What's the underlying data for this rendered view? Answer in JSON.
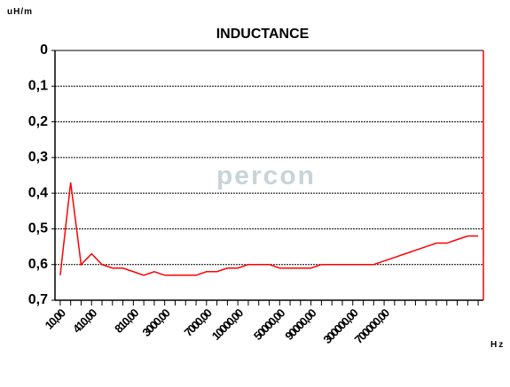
{
  "chart_data": {
    "type": "line",
    "title": "INDUCTANCE",
    "y_label": "uH/m",
    "x_label": "Hz",
    "watermark": "percon",
    "categories": [
      "10,00",
      null,
      null,
      "410,00",
      null,
      null,
      null,
      "810,00",
      null,
      null,
      "3000,00",
      null,
      null,
      null,
      "7000,00",
      null,
      null,
      "10000,00",
      null,
      null,
      null,
      "50000,00",
      null,
      null,
      "90000,00",
      null,
      null,
      null,
      "300000,00",
      null,
      null,
      "700000,00",
      null,
      null,
      null,
      null,
      null,
      null,
      null,
      null,
      null
    ],
    "series": [
      {
        "name": "INDUCTANCE",
        "color": "#ff0000",
        "values": [
          0.63,
          0.37,
          0.6,
          0.57,
          0.6,
          0.61,
          0.61,
          0.62,
          0.63,
          0.62,
          0.63,
          0.63,
          0.63,
          0.63,
          0.62,
          0.62,
          0.61,
          0.61,
          0.6,
          0.6,
          0.6,
          0.61,
          0.61,
          0.61,
          0.61,
          0.6,
          0.6,
          0.6,
          0.6,
          0.6,
          0.6,
          0.59,
          0.58,
          0.57,
          0.56,
          0.55,
          0.54,
          0.54,
          0.53,
          0.52,
          0.52
        ]
      }
    ],
    "ylim": [
      0,
      0.7
    ],
    "y_inverted": true,
    "yticks": [
      0,
      {
        "value": 0.1,
        "label": "0,1"
      },
      {
        "value": 0.2,
        "label": "0,2"
      },
      {
        "value": 0.3,
        "label": "0,3"
      },
      {
        "value": 0.4,
        "label": "0,4"
      },
      {
        "value": 0.5,
        "label": "0,5"
      },
      {
        "value": 0.6,
        "label": "0,6"
      },
      {
        "value": 0.7,
        "label": "0,7"
      }
    ],
    "grid": true
  }
}
